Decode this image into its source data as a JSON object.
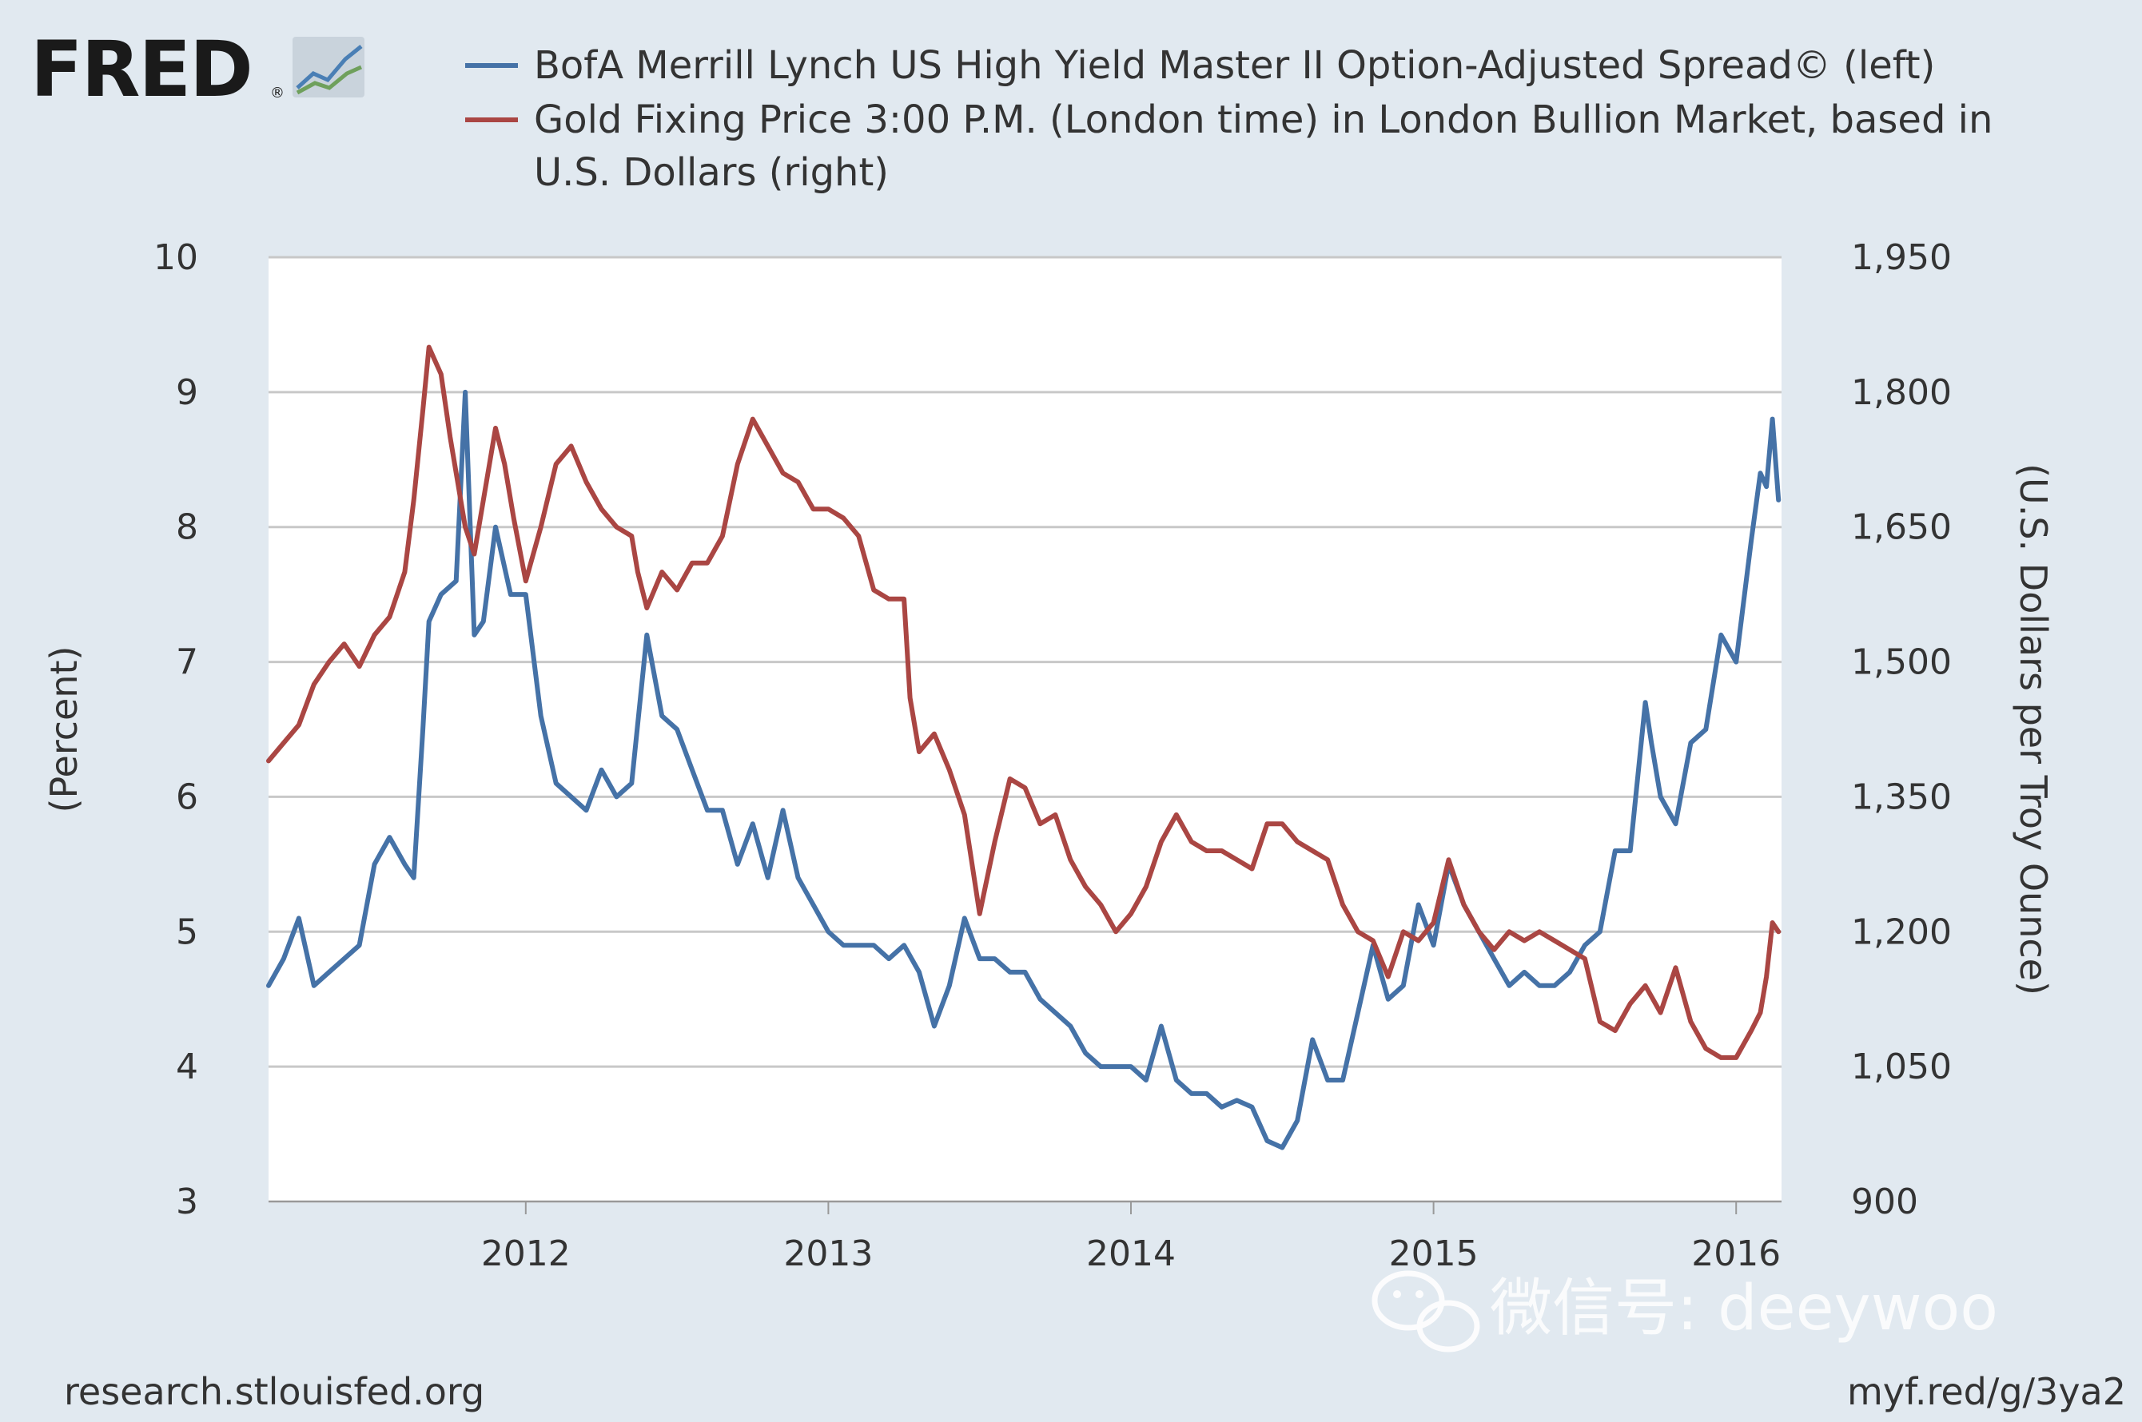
{
  "logo": {
    "text": "FRED",
    "registered": "®"
  },
  "legend": [
    {
      "label": "BofA Merrill Lynch US High Yield Master II Option-Adjusted Spread© (left)",
      "color": "#4572a7"
    },
    {
      "label_line1": "Gold Fixing Price 3:00 P.M. (London time) in London Bullion Market, based in",
      "label_line2": "U.S. Dollars (right)",
      "color": "#aa4643"
    }
  ],
  "footer": {
    "left": "research.stlouisfed.org",
    "right": "myf.red/g/3ya2"
  },
  "watermark": {
    "text": "微信号: deeywoo"
  },
  "chart_data": {
    "type": "line",
    "title": "",
    "x_range": [
      2011.15,
      2016.15
    ],
    "x_ticks": [
      "2012",
      "2013",
      "2014",
      "2015",
      "2016"
    ],
    "y_left": {
      "label": "(Percent)",
      "range": [
        3,
        10
      ],
      "ticks": [
        "10",
        "9",
        "8",
        "7",
        "6",
        "5",
        "4",
        "3"
      ]
    },
    "y_right": {
      "label": "(U.S. Dollars per Troy Ounce)",
      "range": [
        900,
        1950
      ],
      "ticks": [
        "1,950",
        "1,800",
        "1,650",
        "1,500",
        "1,350",
        "1,200",
        "1,050",
        "900"
      ]
    },
    "grid": true,
    "series": [
      {
        "name": "BofA Merrill Lynch US High Yield Master II Option-Adjusted Spread© (left)",
        "axis": "left",
        "color": "#4572a7",
        "points": [
          [
            2011.15,
            4.6
          ],
          [
            2011.2,
            4.8
          ],
          [
            2011.25,
            5.1
          ],
          [
            2011.3,
            4.6
          ],
          [
            2011.35,
            4.7
          ],
          [
            2011.4,
            4.8
          ],
          [
            2011.45,
            4.9
          ],
          [
            2011.5,
            5.5
          ],
          [
            2011.55,
            5.7
          ],
          [
            2011.6,
            5.5
          ],
          [
            2011.63,
            5.4
          ],
          [
            2011.66,
            6.5
          ],
          [
            2011.68,
            7.3
          ],
          [
            2011.72,
            7.5
          ],
          [
            2011.77,
            7.6
          ],
          [
            2011.8,
            9.0
          ],
          [
            2011.83,
            7.2
          ],
          [
            2011.86,
            7.3
          ],
          [
            2011.9,
            8.0
          ],
          [
            2011.95,
            7.5
          ],
          [
            2012.0,
            7.5
          ],
          [
            2012.05,
            6.6
          ],
          [
            2012.1,
            6.1
          ],
          [
            2012.15,
            6.0
          ],
          [
            2012.2,
            5.9
          ],
          [
            2012.25,
            6.2
          ],
          [
            2012.3,
            6.0
          ],
          [
            2012.35,
            6.1
          ],
          [
            2012.4,
            7.2
          ],
          [
            2012.45,
            6.6
          ],
          [
            2012.5,
            6.5
          ],
          [
            2012.55,
            6.2
          ],
          [
            2012.6,
            5.9
          ],
          [
            2012.65,
            5.9
          ],
          [
            2012.7,
            5.5
          ],
          [
            2012.75,
            5.8
          ],
          [
            2012.8,
            5.4
          ],
          [
            2012.85,
            5.9
          ],
          [
            2012.9,
            5.4
          ],
          [
            2012.95,
            5.2
          ],
          [
            2013.0,
            5.0
          ],
          [
            2013.05,
            4.9
          ],
          [
            2013.1,
            4.9
          ],
          [
            2013.15,
            4.9
          ],
          [
            2013.2,
            4.8
          ],
          [
            2013.25,
            4.9
          ],
          [
            2013.3,
            4.7
          ],
          [
            2013.35,
            4.3
          ],
          [
            2013.4,
            4.6
          ],
          [
            2013.45,
            5.1
          ],
          [
            2013.5,
            4.8
          ],
          [
            2013.55,
            4.8
          ],
          [
            2013.6,
            4.7
          ],
          [
            2013.65,
            4.7
          ],
          [
            2013.7,
            4.5
          ],
          [
            2013.75,
            4.4
          ],
          [
            2013.8,
            4.3
          ],
          [
            2013.85,
            4.1
          ],
          [
            2013.9,
            4.0
          ],
          [
            2013.95,
            4.0
          ],
          [
            2014.0,
            4.0
          ],
          [
            2014.05,
            3.9
          ],
          [
            2014.1,
            4.3
          ],
          [
            2014.15,
            3.9
          ],
          [
            2014.2,
            3.8
          ],
          [
            2014.25,
            3.8
          ],
          [
            2014.3,
            3.7
          ],
          [
            2014.35,
            3.75
          ],
          [
            2014.4,
            3.7
          ],
          [
            2014.45,
            3.45
          ],
          [
            2014.5,
            3.4
          ],
          [
            2014.55,
            3.6
          ],
          [
            2014.6,
            4.2
          ],
          [
            2014.65,
            3.9
          ],
          [
            2014.7,
            3.9
          ],
          [
            2014.75,
            4.4
          ],
          [
            2014.8,
            4.9
          ],
          [
            2014.85,
            4.5
          ],
          [
            2014.9,
            4.6
          ],
          [
            2014.95,
            5.2
          ],
          [
            2015.0,
            4.9
          ],
          [
            2015.05,
            5.5
          ],
          [
            2015.1,
            5.2
          ],
          [
            2015.15,
            5.0
          ],
          [
            2015.2,
            4.8
          ],
          [
            2015.25,
            4.6
          ],
          [
            2015.3,
            4.7
          ],
          [
            2015.35,
            4.6
          ],
          [
            2015.4,
            4.6
          ],
          [
            2015.45,
            4.7
          ],
          [
            2015.5,
            4.9
          ],
          [
            2015.55,
            5.0
          ],
          [
            2015.6,
            5.6
          ],
          [
            2015.65,
            5.6
          ],
          [
            2015.7,
            6.7
          ],
          [
            2015.72,
            6.4
          ],
          [
            2015.75,
            6.0
          ],
          [
            2015.8,
            5.8
          ],
          [
            2015.85,
            6.4
          ],
          [
            2015.9,
            6.5
          ],
          [
            2015.95,
            7.2
          ],
          [
            2016.0,
            7.0
          ],
          [
            2016.05,
            7.9
          ],
          [
            2016.08,
            8.4
          ],
          [
            2016.1,
            8.3
          ],
          [
            2016.12,
            8.8
          ],
          [
            2016.14,
            8.2
          ]
        ]
      },
      {
        "name": "Gold Fixing Price 3:00 P.M. (London time) in London Bullion Market, based in U.S. Dollars (right)",
        "axis": "right",
        "color": "#aa4643",
        "points": [
          [
            2011.15,
            1390
          ],
          [
            2011.2,
            1410
          ],
          [
            2011.25,
            1430
          ],
          [
            2011.3,
            1475
          ],
          [
            2011.35,
            1500
          ],
          [
            2011.4,
            1520
          ],
          [
            2011.45,
            1495
          ],
          [
            2011.5,
            1530
          ],
          [
            2011.55,
            1550
          ],
          [
            2011.6,
            1600
          ],
          [
            2011.63,
            1680
          ],
          [
            2011.66,
            1780
          ],
          [
            2011.68,
            1850
          ],
          [
            2011.72,
            1820
          ],
          [
            2011.75,
            1750
          ],
          [
            2011.8,
            1650
          ],
          [
            2011.83,
            1620
          ],
          [
            2011.87,
            1700
          ],
          [
            2011.9,
            1760
          ],
          [
            2011.93,
            1720
          ],
          [
            2011.96,
            1660
          ],
          [
            2012.0,
            1590
          ],
          [
            2012.05,
            1650
          ],
          [
            2012.1,
            1720
          ],
          [
            2012.15,
            1740
          ],
          [
            2012.2,
            1700
          ],
          [
            2012.25,
            1670
          ],
          [
            2012.3,
            1650
          ],
          [
            2012.35,
            1640
          ],
          [
            2012.37,
            1600
          ],
          [
            2012.4,
            1560
          ],
          [
            2012.45,
            1600
          ],
          [
            2012.5,
            1580
          ],
          [
            2012.55,
            1610
          ],
          [
            2012.6,
            1610
          ],
          [
            2012.65,
            1640
          ],
          [
            2012.7,
            1720
          ],
          [
            2012.75,
            1770
          ],
          [
            2012.8,
            1740
          ],
          [
            2012.85,
            1710
          ],
          [
            2012.9,
            1700
          ],
          [
            2012.95,
            1670
          ],
          [
            2013.0,
            1670
          ],
          [
            2013.05,
            1660
          ],
          [
            2013.1,
            1640
          ],
          [
            2013.15,
            1580
          ],
          [
            2013.2,
            1570
          ],
          [
            2013.25,
            1570
          ],
          [
            2013.27,
            1460
          ],
          [
            2013.3,
            1400
          ],
          [
            2013.35,
            1420
          ],
          [
            2013.4,
            1380
          ],
          [
            2013.45,
            1330
          ],
          [
            2013.5,
            1220
          ],
          [
            2013.55,
            1300
          ],
          [
            2013.6,
            1370
          ],
          [
            2013.65,
            1360
          ],
          [
            2013.7,
            1320
          ],
          [
            2013.75,
            1330
          ],
          [
            2013.8,
            1280
          ],
          [
            2013.85,
            1250
          ],
          [
            2013.9,
            1230
          ],
          [
            2013.95,
            1200
          ],
          [
            2014.0,
            1220
          ],
          [
            2014.05,
            1250
          ],
          [
            2014.1,
            1300
          ],
          [
            2014.15,
            1330
          ],
          [
            2014.2,
            1300
          ],
          [
            2014.25,
            1290
          ],
          [
            2014.3,
            1290
          ],
          [
            2014.35,
            1280
          ],
          [
            2014.4,
            1270
          ],
          [
            2014.45,
            1320
          ],
          [
            2014.5,
            1320
          ],
          [
            2014.55,
            1300
          ],
          [
            2014.6,
            1290
          ],
          [
            2014.65,
            1280
          ],
          [
            2014.7,
            1230
          ],
          [
            2014.75,
            1200
          ],
          [
            2014.8,
            1190
          ],
          [
            2014.85,
            1150
          ],
          [
            2014.9,
            1200
          ],
          [
            2014.95,
            1190
          ],
          [
            2015.0,
            1210
          ],
          [
            2015.05,
            1280
          ],
          [
            2015.1,
            1230
          ],
          [
            2015.15,
            1200
          ],
          [
            2015.2,
            1180
          ],
          [
            2015.25,
            1200
          ],
          [
            2015.3,
            1190
          ],
          [
            2015.35,
            1200
          ],
          [
            2015.4,
            1190
          ],
          [
            2015.45,
            1180
          ],
          [
            2015.5,
            1170
          ],
          [
            2015.55,
            1100
          ],
          [
            2015.6,
            1090
          ],
          [
            2015.65,
            1120
          ],
          [
            2015.7,
            1140
          ],
          [
            2015.75,
            1110
          ],
          [
            2015.8,
            1160
          ],
          [
            2015.85,
            1100
          ],
          [
            2015.9,
            1070
          ],
          [
            2015.95,
            1060
          ],
          [
            2016.0,
            1060
          ],
          [
            2016.05,
            1090
          ],
          [
            2016.08,
            1110
          ],
          [
            2016.1,
            1150
          ],
          [
            2016.12,
            1210
          ],
          [
            2016.14,
            1200
          ]
        ]
      }
    ]
  }
}
